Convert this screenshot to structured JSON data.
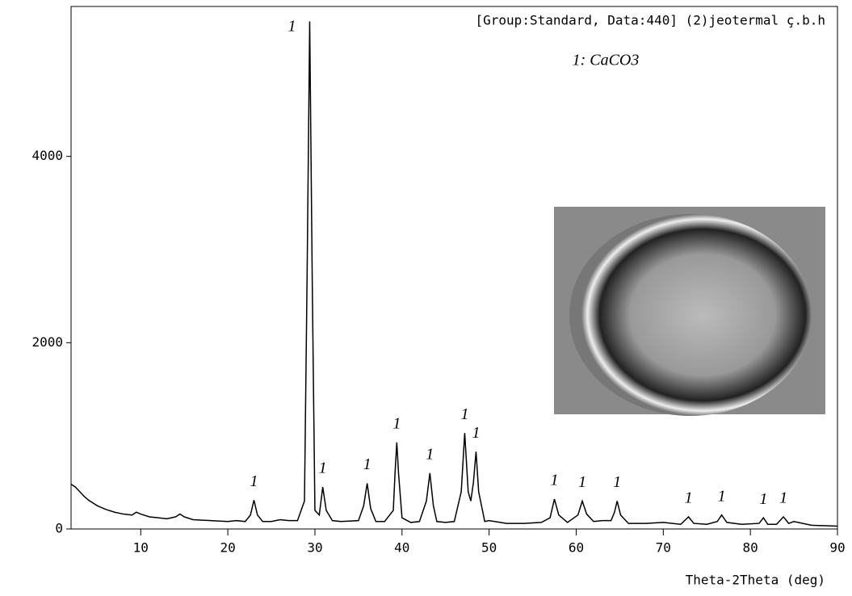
{
  "chart_data": {
    "type": "line",
    "title": "[Group:Standard, Data:440] (2)jeotermal ç.b.h",
    "legend_text": "1: CaCO3",
    "x_label": "Theta-2Theta (deg)",
    "x": [
      2,
      2.5,
      3,
      3.5,
      4,
      5,
      6,
      7,
      8,
      9,
      9.5,
      10,
      11,
      12,
      13,
      14,
      14.5,
      15,
      16,
      18,
      20,
      21,
      22,
      22.6,
      23,
      23.4,
      24,
      25,
      26,
      27,
      28,
      28.8,
      29.1,
      29.4,
      29.7,
      30,
      30.5,
      30.9,
      31.3,
      32,
      33,
      35,
      35.6,
      36,
      36.4,
      37,
      38,
      39,
      39.2,
      39.4,
      39.6,
      40,
      41,
      42,
      42.8,
      43.2,
      43.6,
      44,
      45,
      46,
      46.8,
      47.2,
      47.6,
      47.9,
      48.2,
      48.5,
      48.8,
      49.5,
      50,
      52,
      54,
      56,
      57,
      57.5,
      58,
      59,
      60.2,
      60.7,
      61.2,
      62,
      63,
      64,
      64.4,
      64.7,
      65.1,
      66,
      68,
      70,
      72,
      72.9,
      73.5,
      75,
      76.2,
      76.7,
      77.3,
      79,
      81,
      81.5,
      82,
      83,
      83.8,
      84.4,
      85,
      87,
      90
    ],
    "series": [
      {
        "color": "#000000",
        "values": [
          480,
          450,
          400,
          350,
          310,
          250,
          210,
          180,
          160,
          150,
          180,
          160,
          130,
          120,
          110,
          130,
          160,
          130,
          100,
          90,
          80,
          90,
          80,
          150,
          310,
          150,
          80,
          80,
          100,
          90,
          90,
          300,
          2700,
          5450,
          2600,
          200,
          150,
          450,
          200,
          90,
          80,
          90,
          250,
          490,
          220,
          80,
          80,
          200,
          600,
          930,
          600,
          120,
          70,
          80,
          300,
          600,
          250,
          80,
          70,
          80,
          400,
          1030,
          400,
          300,
          500,
          830,
          400,
          80,
          90,
          60,
          60,
          70,
          120,
          320,
          150,
          70,
          150,
          300,
          160,
          80,
          90,
          90,
          180,
          300,
          150,
          60,
          60,
          70,
          50,
          130,
          60,
          50,
          80,
          150,
          70,
          50,
          60,
          120,
          50,
          50,
          130,
          60,
          80,
          40,
          30
        ]
      }
    ],
    "peak_labels": [
      {
        "x": 23,
        "label": "1"
      },
      {
        "x": 29.4,
        "label": "1"
      },
      {
        "x": 30.9,
        "label": "1"
      },
      {
        "x": 36,
        "label": "1"
      },
      {
        "x": 39.4,
        "label": "1"
      },
      {
        "x": 43.2,
        "label": "1"
      },
      {
        "x": 47.2,
        "label": "1"
      },
      {
        "x": 48.5,
        "label": "1"
      },
      {
        "x": 57.5,
        "label": "1"
      },
      {
        "x": 60.7,
        "label": "1"
      },
      {
        "x": 64.7,
        "label": "1"
      },
      {
        "x": 72.9,
        "label": "1"
      },
      {
        "x": 76.7,
        "label": "1"
      },
      {
        "x": 81.5,
        "label": "1"
      },
      {
        "x": 83.8,
        "label": "1"
      }
    ],
    "xlim": [
      2,
      90
    ],
    "ylim": [
      0,
      5610
    ],
    "xticks": [
      10,
      20,
      30,
      40,
      50,
      60,
      70,
      80,
      90
    ],
    "yticks": [
      0,
      2000,
      4000
    ]
  }
}
